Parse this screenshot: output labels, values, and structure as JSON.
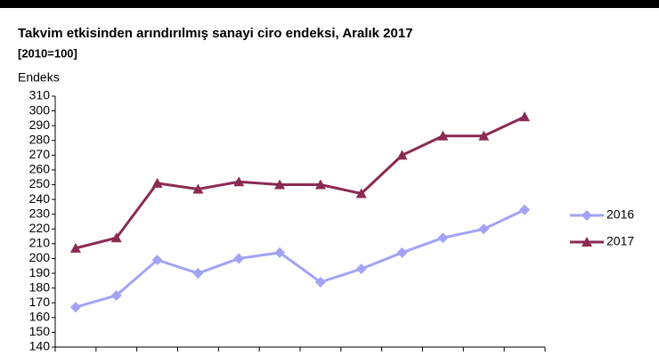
{
  "chart_data": {
    "type": "line",
    "title": "Takvim etkisinden arındırılmış sanayi ciro endeksi,  Aralık 2017",
    "subtitle": "[2010=100]",
    "y_label": "Endeks",
    "categories": [
      null,
      null,
      null,
      null,
      null,
      null,
      null,
      null,
      null,
      null,
      null,
      null
    ],
    "series": [
      {
        "name": "2016",
        "color": "#a3a3f5",
        "marker": "diamond",
        "values": [
          167,
          175,
          199,
          190,
          200,
          204,
          184,
          193,
          204,
          214,
          220,
          233
        ]
      },
      {
        "name": "2017",
        "color": "#8b2a52",
        "marker": "triangle",
        "values": [
          207,
          214,
          251,
          247,
          252,
          250,
          250,
          244,
          270,
          283,
          283,
          296
        ]
      }
    ],
    "ylim": [
      140,
      310
    ],
    "yticks": [
      140,
      150,
      160,
      170,
      180,
      190,
      200,
      210,
      220,
      230,
      240,
      250,
      260,
      270,
      280,
      290,
      300,
      310
    ],
    "legend": "right"
  }
}
